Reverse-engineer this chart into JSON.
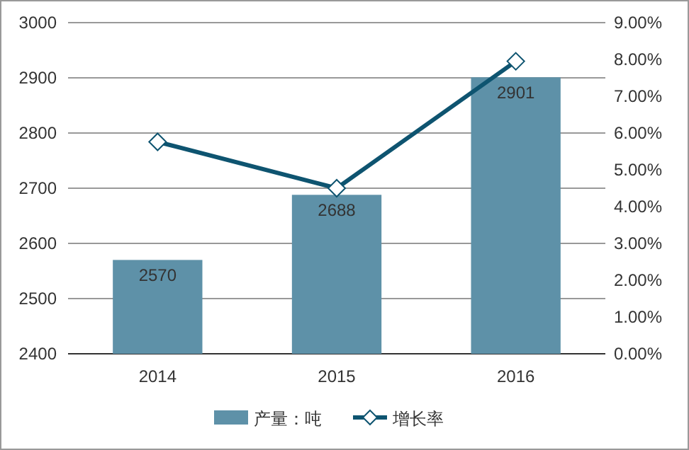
{
  "chart_data": {
    "type": "bar",
    "categories": [
      "2014",
      "2015",
      "2016"
    ],
    "series": [
      {
        "name": "产量：吨",
        "color": "#5e91a8",
        "values": [
          2570,
          2688,
          2901
        ],
        "value_labels": [
          "2570",
          "2688",
          "2901"
        ]
      },
      {
        "name": "增长率",
        "type": "line",
        "axis": "y2",
        "color": "#0e5470",
        "marker": "diamond",
        "values": [
          5.76,
          4.5,
          7.95
        ]
      }
    ],
    "ylim": [
      2400,
      3000
    ],
    "yticks": [
      2400,
      2500,
      2600,
      2700,
      2800,
      2900,
      3000
    ],
    "y2lim": [
      0,
      9
    ],
    "y2ticks": [
      {
        "value": 0,
        "label": "0.00%"
      },
      {
        "value": 1,
        "label": "1.00%"
      },
      {
        "value": 2,
        "label": "2.00%"
      },
      {
        "value": 3,
        "label": "3.00%"
      },
      {
        "value": 4,
        "label": "4.00%"
      },
      {
        "value": 5,
        "label": "5.00%"
      },
      {
        "value": 6,
        "label": "6.00%"
      },
      {
        "value": 7,
        "label": "7.00%"
      },
      {
        "value": 8,
        "label": "8.00%"
      },
      {
        "value": 9,
        "label": "9.00%"
      }
    ],
    "grid": "y",
    "legend": "bottom"
  }
}
